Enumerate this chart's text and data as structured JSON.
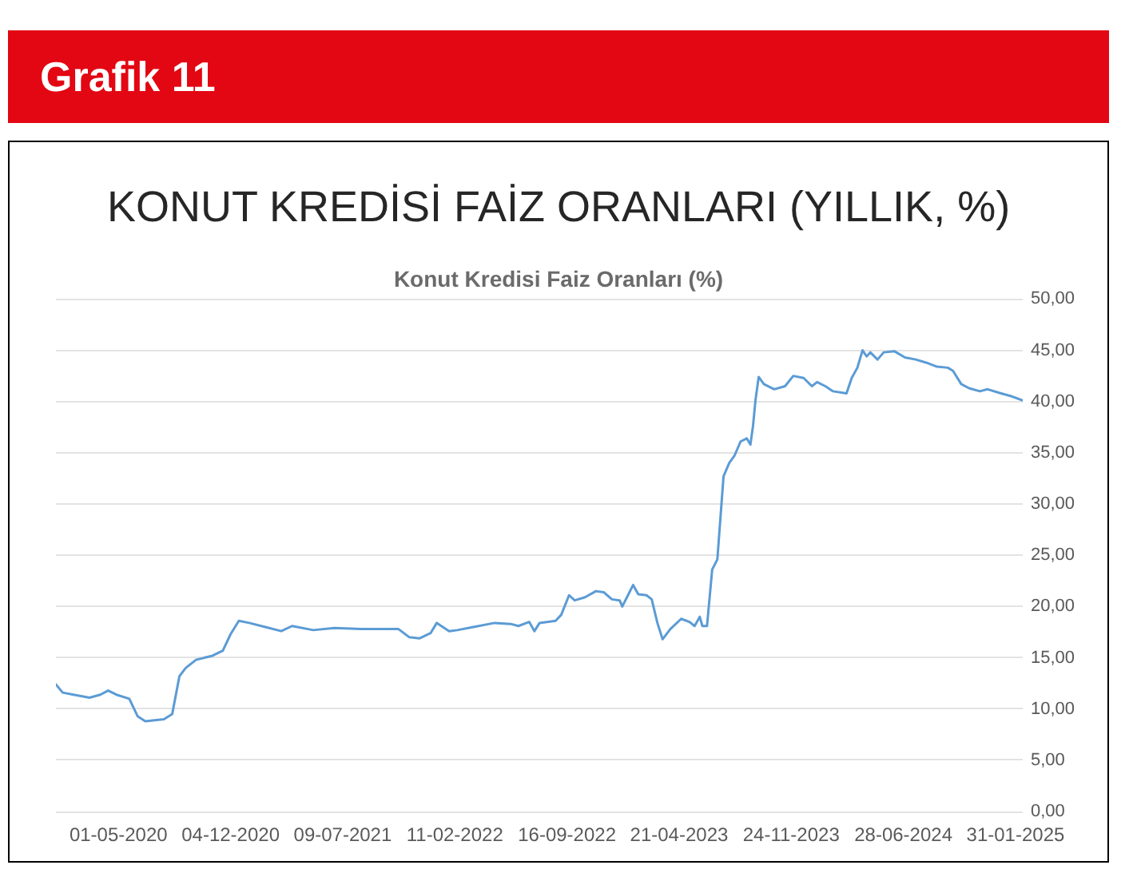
{
  "chart_data": {
    "type": "line",
    "title": "KONUT KREDİSİ FAİZ ORANLARI (YILLIK, %)",
    "subtitle": "Konut Kredisi Faiz Oranları (%)",
    "annotations": [
      "Grafik 11"
    ],
    "x": [
      "2020-01-01",
      "2020-01-14",
      "2020-02-04",
      "2020-03-06",
      "2020-03-27",
      "2020-04-11",
      "2020-04-27",
      "2020-05-22",
      "2020-06-07",
      "2020-06-22",
      "2020-07-28",
      "2020-08-13",
      "2020-08-27",
      "2020-09-08",
      "2020-09-28",
      "2020-10-30",
      "2020-11-19",
      "2020-12-04",
      "2020-12-20",
      "2021-01-09",
      "2021-02-09",
      "2021-03-12",
      "2021-04-02",
      "2021-05-13",
      "2021-06-23",
      "2021-08-14",
      "2021-10-25",
      "2021-11-15",
      "2021-12-05",
      "2021-12-26",
      "2022-01-07",
      "2022-01-31",
      "2022-02-16",
      "2022-03-19",
      "2022-04-29",
      "2022-05-30",
      "2022-06-14",
      "2022-07-05",
      "2022-07-15",
      "2022-07-25",
      "2022-08-25",
      "2022-09-05",
      "2022-09-20",
      "2022-10-01",
      "2022-10-21",
      "2022-11-11",
      "2022-11-26",
      "2022-12-12",
      "2022-12-27",
      "2023-01-01",
      "2023-01-12",
      "2023-01-22",
      "2023-02-01",
      "2023-02-17",
      "2023-02-27",
      "2023-03-10",
      "2023-03-20",
      "2023-04-04",
      "2023-04-25",
      "2023-05-11",
      "2023-05-21",
      "2023-05-31",
      "2023-06-05",
      "2023-06-14",
      "2023-06-24",
      "2023-07-04",
      "2023-07-16",
      "2023-07-27",
      "2023-08-06",
      "2023-08-18",
      "2023-08-30",
      "2023-09-06",
      "2023-09-11",
      "2023-09-16",
      "2023-09-22",
      "2023-10-02",
      "2023-10-22",
      "2023-11-12",
      "2023-11-28",
      "2023-12-18",
      "2024-01-03",
      "2024-01-13",
      "2024-01-29",
      "2024-02-13",
      "2024-03-10",
      "2024-03-20",
      "2024-03-31",
      "2024-04-10",
      "2024-04-18",
      "2024-04-25",
      "2024-05-09",
      "2024-05-21",
      "2024-06-11",
      "2024-07-01",
      "2024-07-22",
      "2024-08-11",
      "2024-09-01",
      "2024-09-22",
      "2024-10-02",
      "2024-10-18",
      "2024-11-02",
      "2024-11-23",
      "2024-12-08",
      "2025-01-03",
      "2025-01-24",
      "2025-02-14"
    ],
    "values": [
      12.4,
      11.6,
      11.4,
      11.1,
      11.4,
      11.8,
      11.4,
      11.0,
      9.3,
      8.8,
      9.0,
      9.5,
      13.2,
      14.0,
      14.8,
      15.2,
      15.7,
      17.3,
      18.6,
      18.4,
      18.0,
      17.6,
      18.1,
      17.7,
      17.9,
      17.8,
      17.8,
      17.0,
      16.9,
      17.4,
      18.4,
      17.6,
      17.7,
      18.0,
      18.4,
      18.3,
      18.1,
      18.5,
      17.6,
      18.4,
      18.6,
      19.2,
      21.1,
      20.6,
      20.9,
      21.5,
      21.4,
      20.7,
      20.6,
      20.0,
      21.1,
      22.1,
      21.2,
      21.1,
      20.7,
      18.4,
      16.8,
      17.8,
      18.8,
      18.5,
      18.1,
      19.0,
      18.1,
      18.1,
      23.6,
      24.6,
      32.7,
      34.0,
      34.7,
      36.1,
      36.4,
      35.8,
      37.6,
      40.2,
      42.4,
      41.7,
      41.2,
      41.5,
      42.5,
      42.3,
      41.5,
      41.9,
      41.5,
      41.0,
      40.8,
      42.3,
      43.3,
      45.0,
      44.4,
      44.8,
      44.1,
      44.8,
      44.9,
      44.3,
      44.1,
      43.8,
      43.4,
      43.3,
      43.0,
      41.7,
      41.3,
      41.0,
      41.2,
      40.8,
      40.5,
      40.1
    ],
    "color": "#5b9bd5",
    "xlim": [
      "2020-01-01",
      "2025-02-14"
    ],
    "xticks": [
      {
        "value": "2020-05-01",
        "label": "01-05-2020"
      },
      {
        "value": "2020-12-04",
        "label": "04-12-2020"
      },
      {
        "value": "2021-07-09",
        "label": "09-07-2021"
      },
      {
        "value": "2022-02-11",
        "label": "11-02-2022"
      },
      {
        "value": "2022-09-16",
        "label": "16-09-2022"
      },
      {
        "value": "2023-04-21",
        "label": "21-04-2023"
      },
      {
        "value": "2023-11-24",
        "label": "24-11-2023"
      },
      {
        "value": "2024-06-28",
        "label": "28-06-2024"
      },
      {
        "value": "2025-01-31",
        "label": "31-01-2025"
      }
    ],
    "ylim": [
      0,
      50
    ],
    "yticks": [
      {
        "value": 0,
        "label": "0,00"
      },
      {
        "value": 5,
        "label": "5,00"
      },
      {
        "value": 10,
        "label": "10,00"
      },
      {
        "value": 15,
        "label": "15,00"
      },
      {
        "value": 20,
        "label": "20,00"
      },
      {
        "value": 25,
        "label": "25,00"
      },
      {
        "value": 30,
        "label": "30,00"
      },
      {
        "value": 35,
        "label": "35,00"
      },
      {
        "value": 40,
        "label": "40,00"
      },
      {
        "value": 45,
        "label": "45,00"
      },
      {
        "value": 50,
        "label": "50,00"
      }
    ],
    "grid": "y",
    "marker": "none"
  }
}
